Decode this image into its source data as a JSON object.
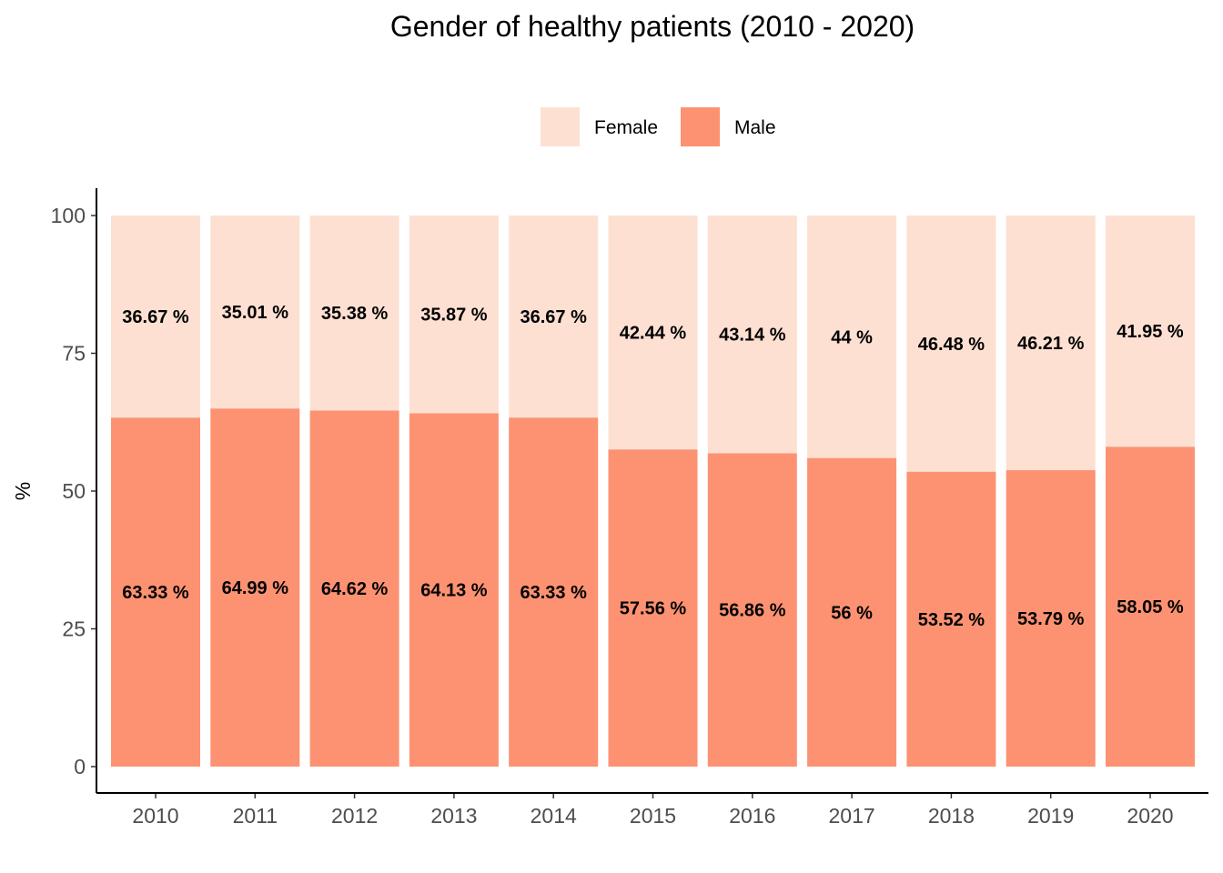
{
  "chart_data": {
    "type": "bar",
    "stacked": true,
    "title": "Gender of healthy patients (2010 - 2020)",
    "xlabel": "",
    "ylabel": "%",
    "ylim": [
      0,
      100
    ],
    "yticks": [
      0,
      25,
      50,
      75,
      100
    ],
    "grid": false,
    "legend_position": "top",
    "categories": [
      "2010",
      "2011",
      "2012",
      "2013",
      "2014",
      "2015",
      "2016",
      "2017",
      "2018",
      "2019",
      "2020"
    ],
    "series": [
      {
        "name": "Male",
        "color": "#fc9272",
        "values": [
          63.33,
          64.99,
          64.62,
          64.13,
          63.33,
          57.56,
          56.86,
          56,
          53.52,
          53.79,
          58.05
        ],
        "labels": [
          "63.33 %",
          "64.99 %",
          "64.62 %",
          "64.13 %",
          "63.33 %",
          "57.56 %",
          "56.86 %",
          "56 %",
          "53.52 %",
          "53.79 %",
          "58.05 %"
        ]
      },
      {
        "name": "Female",
        "color": "#fde0d2",
        "values": [
          36.67,
          35.01,
          35.38,
          35.87,
          36.67,
          42.44,
          43.14,
          44,
          46.48,
          46.21,
          41.95
        ],
        "labels": [
          "36.67 %",
          "35.01 %",
          "35.38 %",
          "35.87 %",
          "36.67 %",
          "42.44 %",
          "43.14 %",
          "44 %",
          "46.48 %",
          "46.21 %",
          "41.95 %"
        ]
      }
    ],
    "legend_order": [
      "Female",
      "Male"
    ]
  }
}
